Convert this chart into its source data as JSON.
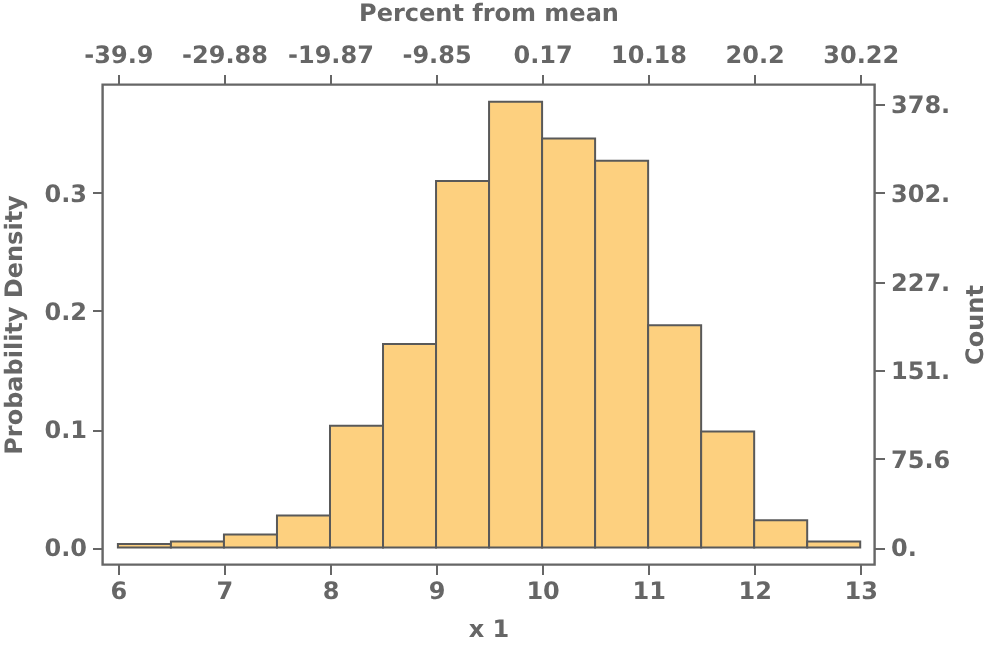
{
  "chart_data": {
    "type": "histogram",
    "color": "#fdd07f",
    "bins": [
      6,
      6.5,
      7,
      7.5,
      8,
      8.5,
      9,
      9.5,
      10,
      10.5,
      11,
      11.5,
      12,
      12.5,
      13
    ],
    "values": [
      0.003,
      0.005,
      0.011,
      0.027,
      0.103,
      0.172,
      0.31,
      0.377,
      0.346,
      0.327,
      0.188,
      0.098,
      0.023,
      0.005
    ],
    "xlabel": "x 1",
    "ylabel": "Probability Density",
    "x2label": "Percent from mean",
    "y2label": "Count",
    "xlim": [
      5.85,
      13.13
    ],
    "xticks": [
      6,
      7,
      8,
      9,
      10,
      11,
      12,
      13
    ],
    "ylim": [
      -0.014,
      0.392
    ],
    "yticks": [
      {
        "value": 0,
        "label": "0.0"
      },
      {
        "value": 0.1,
        "label": "0.1"
      },
      {
        "value": 0.2,
        "label": "0.2"
      },
      {
        "value": 0.3,
        "label": "0.3"
      }
    ],
    "x2lim": [
      -41.4,
      31.52
    ],
    "x2ticks": [
      -39.9,
      -29.88,
      -19.87,
      -9.85,
      0.17,
      10.18,
      20.2,
      30.22
    ],
    "y2lim": [
      -14.2,
      395.3
    ],
    "y2ticks": [
      {
        "value": 0,
        "label": "0."
      },
      {
        "value": 75.6,
        "label": "75.6"
      },
      {
        "value": 151.2,
        "label": "151."
      },
      {
        "value": 226.8,
        "label": "227."
      },
      {
        "value": 302.4,
        "label": "302."
      },
      {
        "value": 378,
        "label": "378."
      }
    ]
  }
}
